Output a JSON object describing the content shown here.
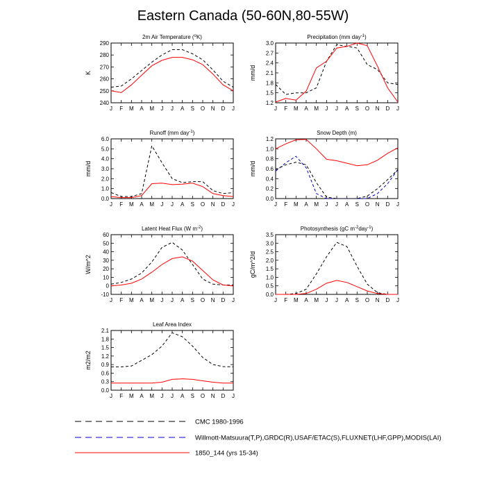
{
  "page_title": "Eastern Canada (50-60N,80-55W)",
  "colors": {
    "cmc": "#000000",
    "obs": "#0000cc",
    "model": "#ff0000"
  },
  "legend": {
    "entries": [
      {
        "label": "CMC 1980-1996",
        "color": "#000000",
        "dashed": true
      },
      {
        "label": "Willmott-Matsuura(T,P),GRDC(R),USAF/ETAC(S),FLUXNET(LHF,GPP),MODIS(LAI)",
        "color": "#0000cc",
        "dashed": true
      },
      {
        "label": "1850_144 (yrs 15-34)",
        "color": "#ff0000",
        "dashed": false
      }
    ]
  },
  "chart_data": [
    {
      "type": "line",
      "title_main": "2m Air Temperature (",
      "title_sup": "o",
      "title_end": "K)",
      "ylabel": "K",
      "categories": [
        "J",
        "F",
        "M",
        "A",
        "M",
        "J",
        "J",
        "A",
        "S",
        "O",
        "N",
        "D",
        "J"
      ],
      "ylim": [
        240,
        290
      ],
      "yticks": [
        "240",
        "250",
        "260",
        "270",
        "280",
        "290"
      ],
      "series": [
        {
          "key": "cmc",
          "values": [
            253,
            254,
            260,
            267,
            274,
            280,
            284.5,
            284.5,
            281,
            276,
            267.5,
            258,
            253
          ]
        },
        {
          "key": "model",
          "values": [
            250,
            248.5,
            255,
            263,
            271,
            275.5,
            278,
            278,
            276,
            272,
            264,
            255,
            250
          ]
        }
      ]
    },
    {
      "type": "line",
      "title_main": "Precipitation (mm day",
      "title_sup": "-1",
      "title_end": ")",
      "ylabel": "mm/d",
      "categories": [
        "J",
        "F",
        "M",
        "A",
        "M",
        "J",
        "J",
        "A",
        "S",
        "O",
        "N",
        "D",
        "J"
      ],
      "ylim": [
        1.2,
        3.0
      ],
      "yticks": [
        "1.2",
        "1.5",
        "1.8",
        "2.1",
        "2.4",
        "2.7",
        "3.0"
      ],
      "series": [
        {
          "key": "cmc",
          "values": [
            1.75,
            1.45,
            1.5,
            1.5,
            1.65,
            2.45,
            2.95,
            2.9,
            2.85,
            2.35,
            2.2,
            1.8,
            1.75
          ]
        },
        {
          "key": "model",
          "values": [
            1.22,
            1.33,
            1.28,
            1.55,
            2.25,
            2.45,
            2.85,
            2.9,
            3.0,
            2.92,
            2.3,
            1.65,
            1.22
          ]
        }
      ]
    },
    {
      "type": "line",
      "title_main": "Runoff (mm day",
      "title_sup": "-1",
      "title_end": ")",
      "ylabel": "mm/d",
      "categories": [
        "J",
        "F",
        "M",
        "A",
        "M",
        "J",
        "J",
        "A",
        "S",
        "O",
        "N",
        "D",
        "J"
      ],
      "ylim": [
        0,
        6
      ],
      "yticks": [
        "0.0",
        "1.0",
        "2.0",
        "3.0",
        "4.0",
        "5.0",
        "6.0"
      ],
      "series": [
        {
          "key": "cmc",
          "values": [
            0.6,
            0.2,
            0.2,
            0.5,
            5.3,
            3.6,
            2.0,
            1.6,
            1.7,
            1.7,
            0.8,
            0.5,
            0.6
          ]
        },
        {
          "key": "model",
          "values": [
            0.2,
            0.1,
            0.1,
            0.3,
            1.5,
            1.55,
            1.4,
            1.45,
            1.55,
            1.2,
            0.5,
            0.3,
            0.2
          ]
        }
      ]
    },
    {
      "type": "line",
      "title_main": "Snow Depth (m)",
      "title_sup": "",
      "title_end": "",
      "ylabel": "mm/d",
      "categories": [
        "J",
        "F",
        "M",
        "A",
        "M",
        "J",
        "J",
        "A",
        "S",
        "O",
        "N",
        "D",
        "J"
      ],
      "ylim": [
        0,
        1.2
      ],
      "yticks": [
        "0.0",
        "0.2",
        "0.4",
        "0.6",
        "0.8",
        "1.0",
        "1.2"
      ],
      "series": [
        {
          "key": "obs",
          "values": [
            0.55,
            0.72,
            0.85,
            0.62,
            0.1,
            0.0,
            0.0,
            0.0,
            0.0,
            0.0,
            0.1,
            0.3,
            0.58
          ]
        },
        {
          "key": "cmc",
          "values": [
            0.58,
            0.68,
            0.73,
            0.68,
            0.32,
            0.03,
            0.0,
            0.0,
            0.0,
            0.05,
            0.2,
            0.38,
            0.58
          ]
        },
        {
          "key": "model",
          "values": [
            1.0,
            1.1,
            1.18,
            1.19,
            1.0,
            0.79,
            0.76,
            0.71,
            0.66,
            0.68,
            0.77,
            0.91,
            1.02
          ]
        }
      ]
    },
    {
      "type": "line",
      "title_main": "Latent Heat Flux (W m",
      "title_sup": "-2",
      "title_end": ")",
      "ylabel": "W/m^2",
      "categories": [
        "J",
        "F",
        "M",
        "A",
        "M",
        "J",
        "J",
        "A",
        "S",
        "O",
        "N",
        "D",
        "J"
      ],
      "ylim": [
        -10,
        60
      ],
      "yticks": [
        "-10",
        "0",
        "10",
        "20",
        "30",
        "40",
        "50",
        "60"
      ],
      "series": [
        {
          "key": "cmc",
          "values": [
            2,
            4,
            8,
            15,
            28,
            45,
            51,
            42,
            25,
            8,
            2,
            1,
            1
          ]
        },
        {
          "key": "model",
          "values": [
            0,
            1,
            3,
            8,
            16,
            25,
            32,
            34,
            29,
            18,
            7,
            1,
            0
          ]
        }
      ]
    },
    {
      "type": "line",
      "title_main": "Photosynthesis (gC m",
      "title_sup": "-2",
      "title_end": "day",
      "title_sup2": "-1",
      "title_end2": ")",
      "ylabel": "gC/m^2/d",
      "categories": [
        "J",
        "F",
        "M",
        "A",
        "M",
        "J",
        "J",
        "A",
        "S",
        "O",
        "N",
        "D",
        "J"
      ],
      "ylim": [
        0,
        3.5
      ],
      "yticks": [
        "0.0",
        "0.5",
        "1.0",
        "1.5",
        "2.0",
        "2.5",
        "3.0",
        "3.5"
      ],
      "series": [
        {
          "key": "cmc",
          "values": [
            0.0,
            0.0,
            0.05,
            0.3,
            1.2,
            2.2,
            3.05,
            2.8,
            1.65,
            0.6,
            0.1,
            0.0,
            0.0
          ]
        },
        {
          "key": "model",
          "values": [
            0.0,
            0.0,
            0.0,
            0.05,
            0.3,
            0.65,
            0.82,
            0.7,
            0.45,
            0.2,
            0.05,
            0.0,
            0.0
          ]
        }
      ]
    },
    {
      "type": "line",
      "title_main": "Leaf Area Index",
      "title_sup": "",
      "title_end": "",
      "ylabel": "m2/m2",
      "categories": [
        "J",
        "F",
        "M",
        "A",
        "M",
        "J",
        "J",
        "A",
        "S",
        "O",
        "N",
        "D",
        "J"
      ],
      "ylim": [
        0,
        2.1
      ],
      "yticks": [
        "0.0",
        "0.3",
        "0.6",
        "0.9",
        "1.2",
        "1.5",
        "1.8",
        "2.1"
      ],
      "series": [
        {
          "key": "cmc",
          "values": [
            0.82,
            0.82,
            0.85,
            1.05,
            1.25,
            1.55,
            2.02,
            1.88,
            1.55,
            1.15,
            0.9,
            0.83,
            0.82
          ]
        },
        {
          "key": "model",
          "values": [
            0.25,
            0.25,
            0.25,
            0.25,
            0.25,
            0.28,
            0.38,
            0.4,
            0.38,
            0.33,
            0.28,
            0.25,
            0.25
          ]
        }
      ]
    }
  ]
}
